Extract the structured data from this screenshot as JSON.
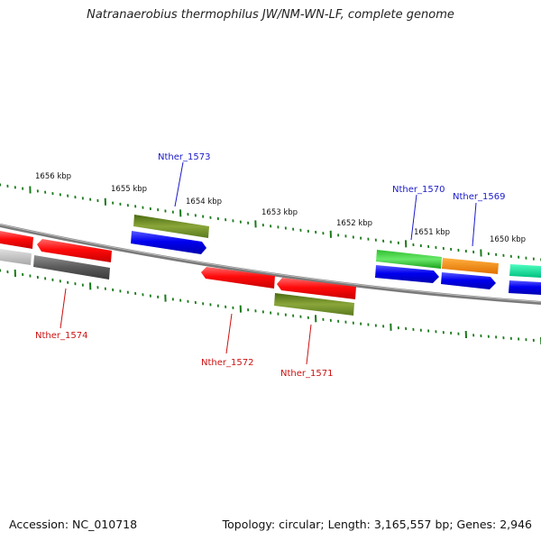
{
  "title": "Natranaerobius thermophilus JW/NM-WN-LF, complete genome",
  "footer": {
    "accession": "Accession: NC_010718",
    "summary": "Topology: circular; Length: 3,165,557 bp; Genes: 2,946"
  },
  "colors": {
    "tick": "#1a7a1a",
    "backbone": "#7a7a7a",
    "label_forward": "#1a1acc",
    "label_reverse": "#cc1111"
  },
  "kbp_labels": [
    "1656 kbp",
    "1655 kbp",
    "1654 kbp",
    "1653 kbp",
    "1652 kbp",
    "1651 kbp",
    "1650 kbp"
  ],
  "gene_labels": [
    {
      "text": "Nther_1573",
      "strand": "forward"
    },
    {
      "text": "Nther_1570",
      "strand": "forward"
    },
    {
      "text": "Nther_1569",
      "strand": "forward"
    },
    {
      "text": "Nther_1574",
      "strand": "reverse"
    },
    {
      "text": "Nther_1572",
      "strand": "reverse"
    },
    {
      "text": "Nther_1571",
      "strand": "reverse"
    }
  ]
}
